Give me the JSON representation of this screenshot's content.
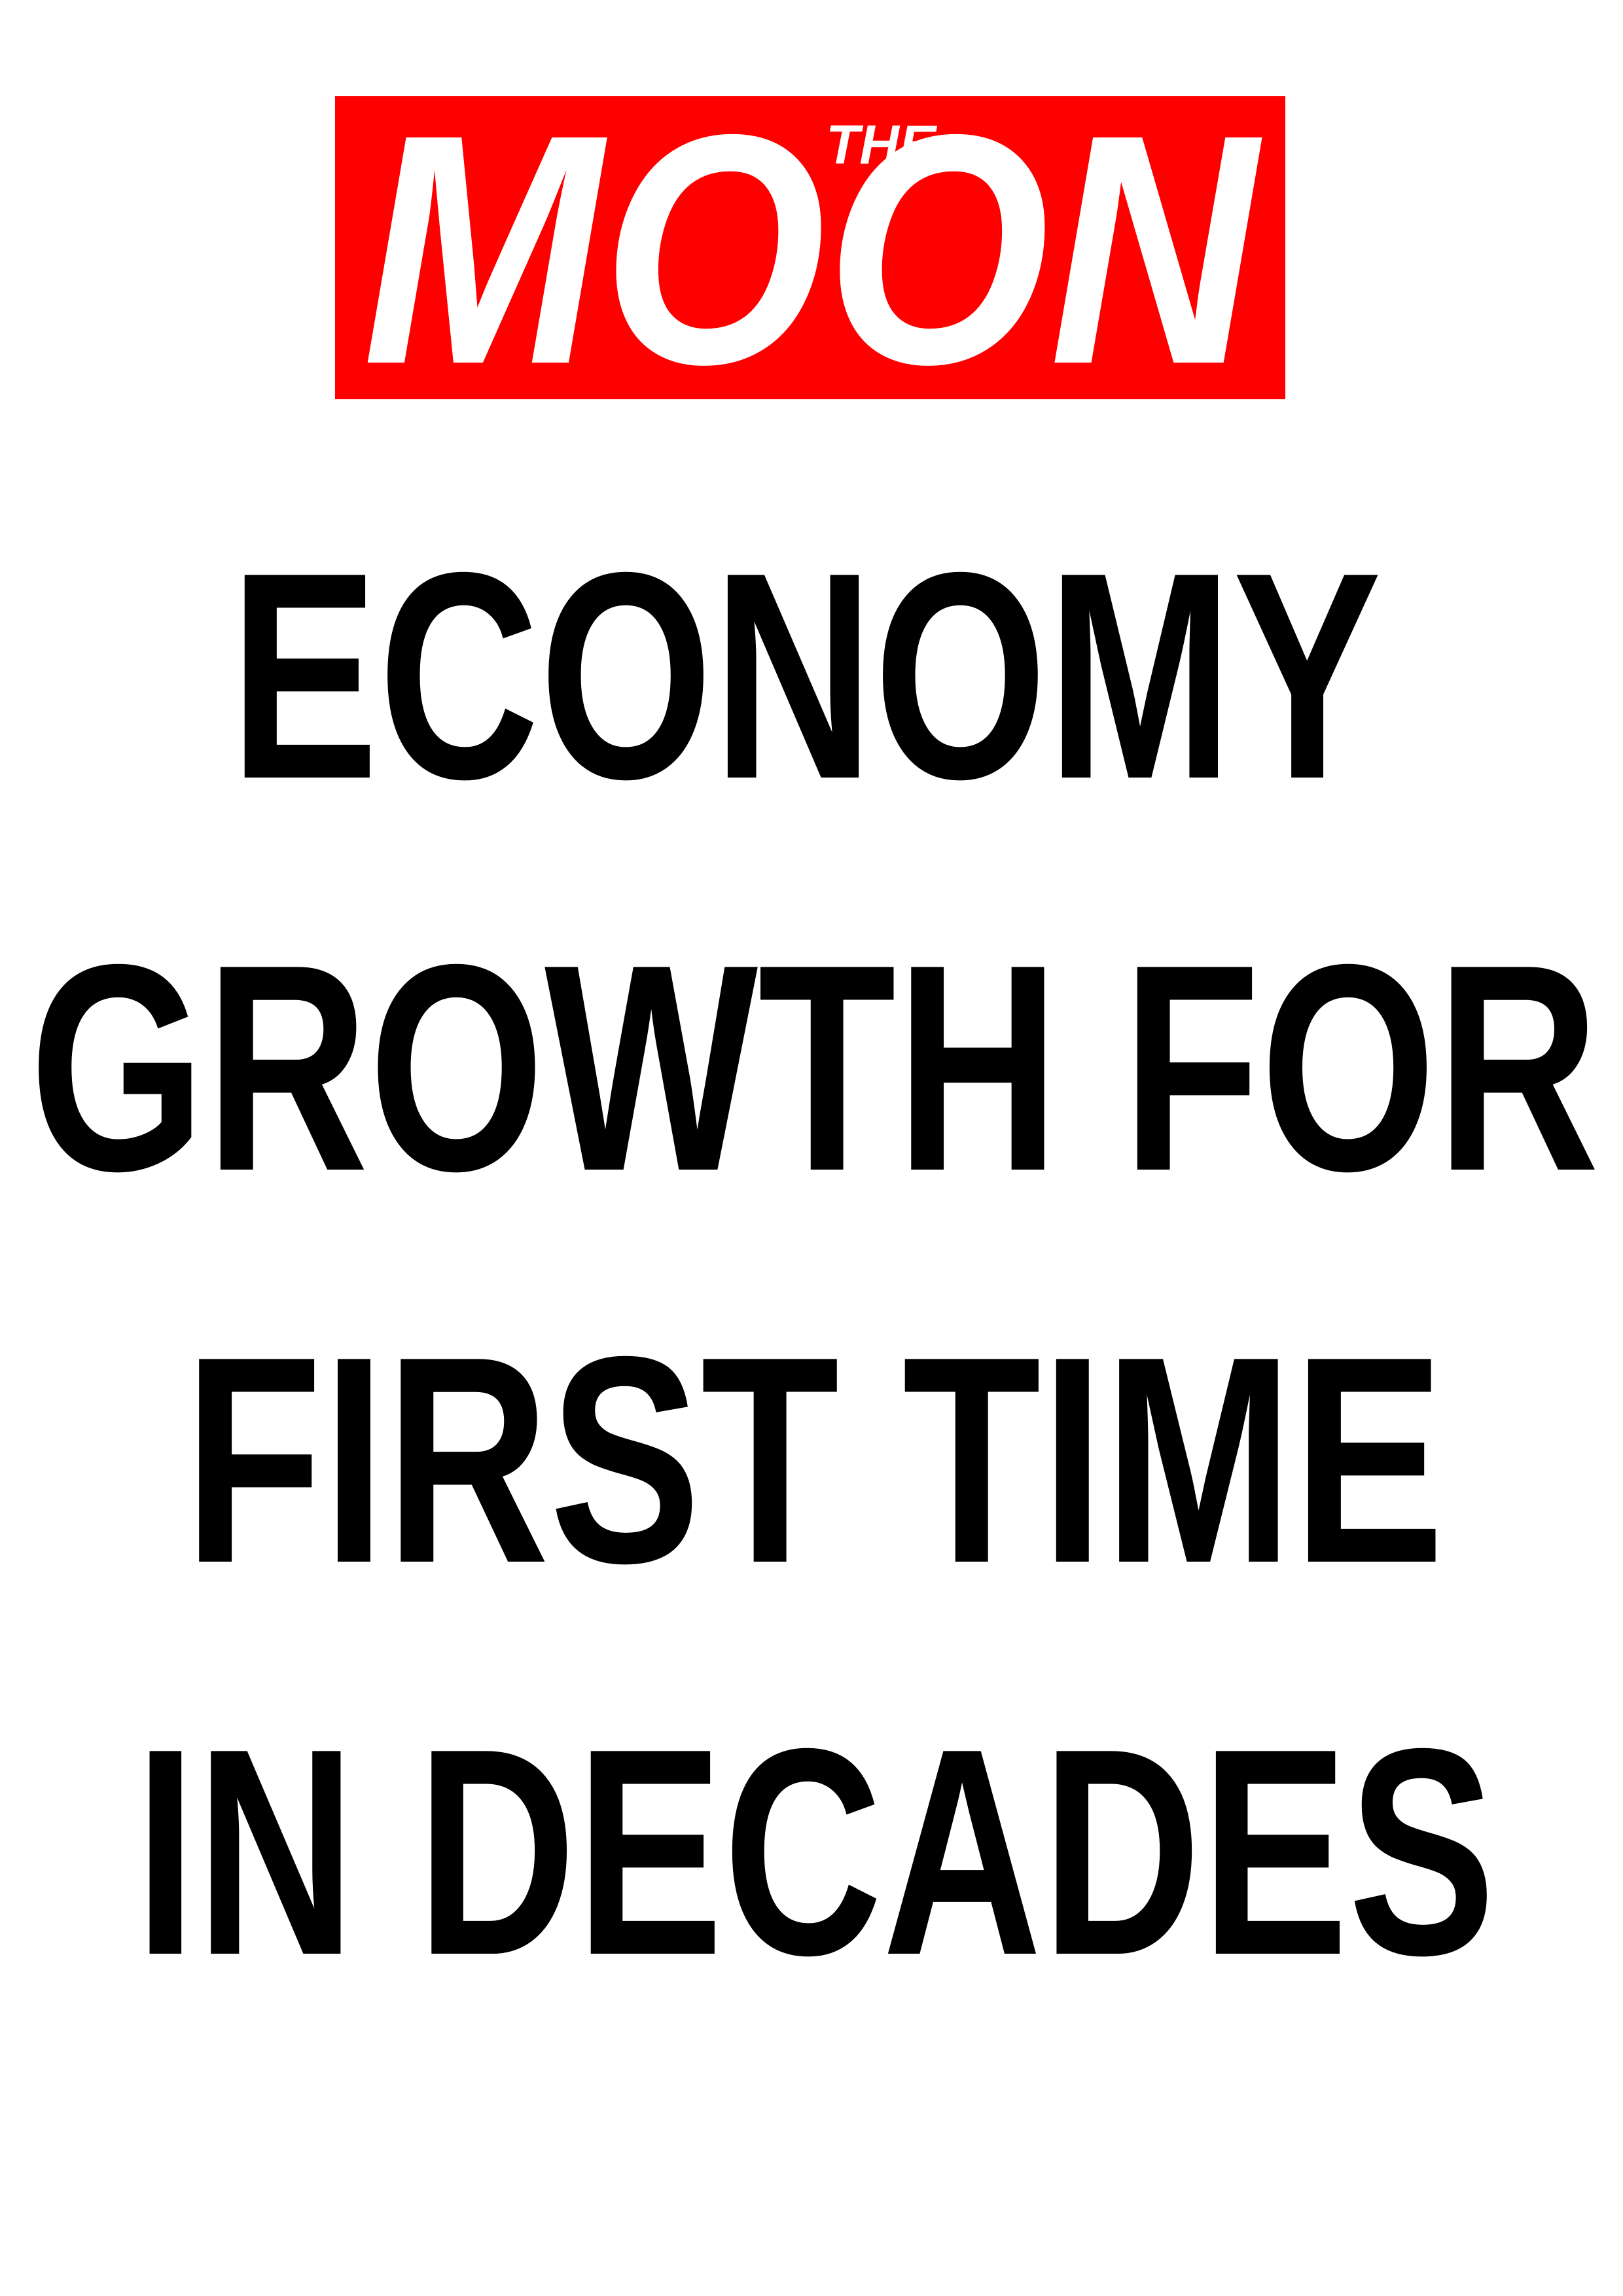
{
  "masthead": {
    "the": "THE",
    "name": "MOON"
  },
  "headline": [
    "ECONOMY",
    "GROWTH FOR",
    "FIRST TIME",
    "IN DECADES"
  ]
}
